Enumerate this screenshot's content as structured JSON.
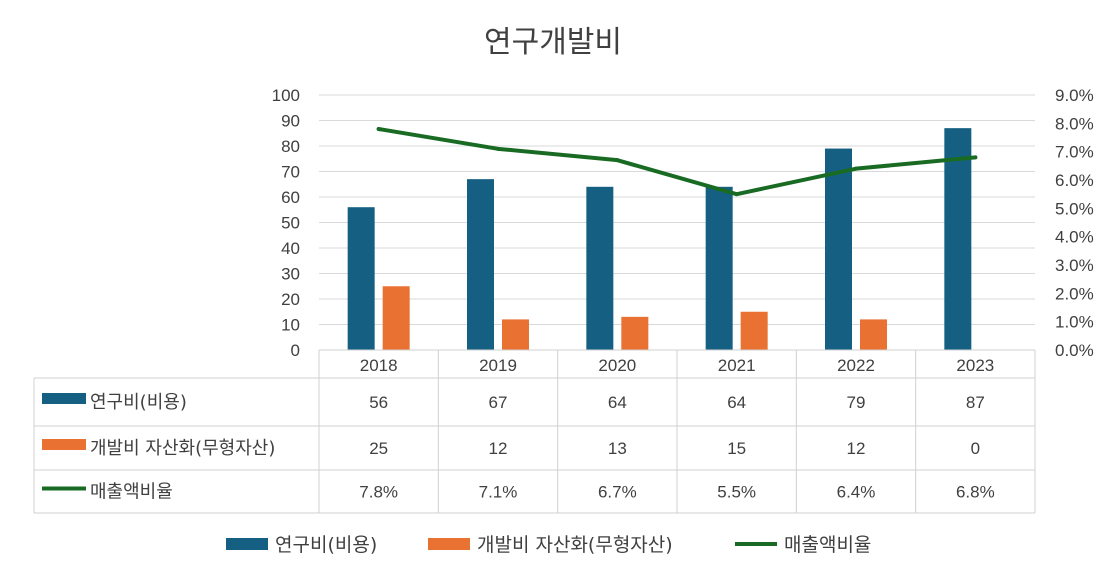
{
  "chart_data": {
    "type": "bar",
    "title": "연구개발비",
    "categories": [
      "2018",
      "2019",
      "2020",
      "2021",
      "2022",
      "2023"
    ],
    "ylim": [
      0,
      100
    ],
    "yticks": [
      "0",
      "10",
      "20",
      "30",
      "40",
      "50",
      "60",
      "70",
      "80",
      "90",
      "100"
    ],
    "y2lim": [
      0,
      9
    ],
    "y2ticks": [
      "0.0%",
      "1.0%",
      "2.0%",
      "3.0%",
      "4.0%",
      "5.0%",
      "6.0%",
      "7.0%",
      "8.0%",
      "9.0%"
    ],
    "series": [
      {
        "name": "연구비(비용)",
        "kind": "bar",
        "axis": "left",
        "color": "#156082",
        "values": [
          56,
          67,
          64,
          64,
          79,
          87
        ],
        "labels": [
          "56",
          "67",
          "64",
          "64",
          "79",
          "87"
        ]
      },
      {
        "name": "개발비 자산화(무형자산)",
        "kind": "bar",
        "axis": "left",
        "color": "#E97132",
        "values": [
          25,
          12,
          13,
          15,
          12,
          0
        ],
        "labels": [
          "25",
          "12",
          "13",
          "15",
          "12",
          "0"
        ]
      },
      {
        "name": "매출액비율",
        "kind": "line",
        "axis": "right",
        "color": "#196B24",
        "values": [
          7.8,
          7.1,
          6.7,
          5.5,
          6.4,
          6.8
        ],
        "labels": [
          "7.8%",
          "7.1%",
          "6.7%",
          "5.5%",
          "6.4%",
          "6.8%"
        ]
      }
    ],
    "grid": true,
    "data_table": true,
    "legend_position": "bottom"
  }
}
